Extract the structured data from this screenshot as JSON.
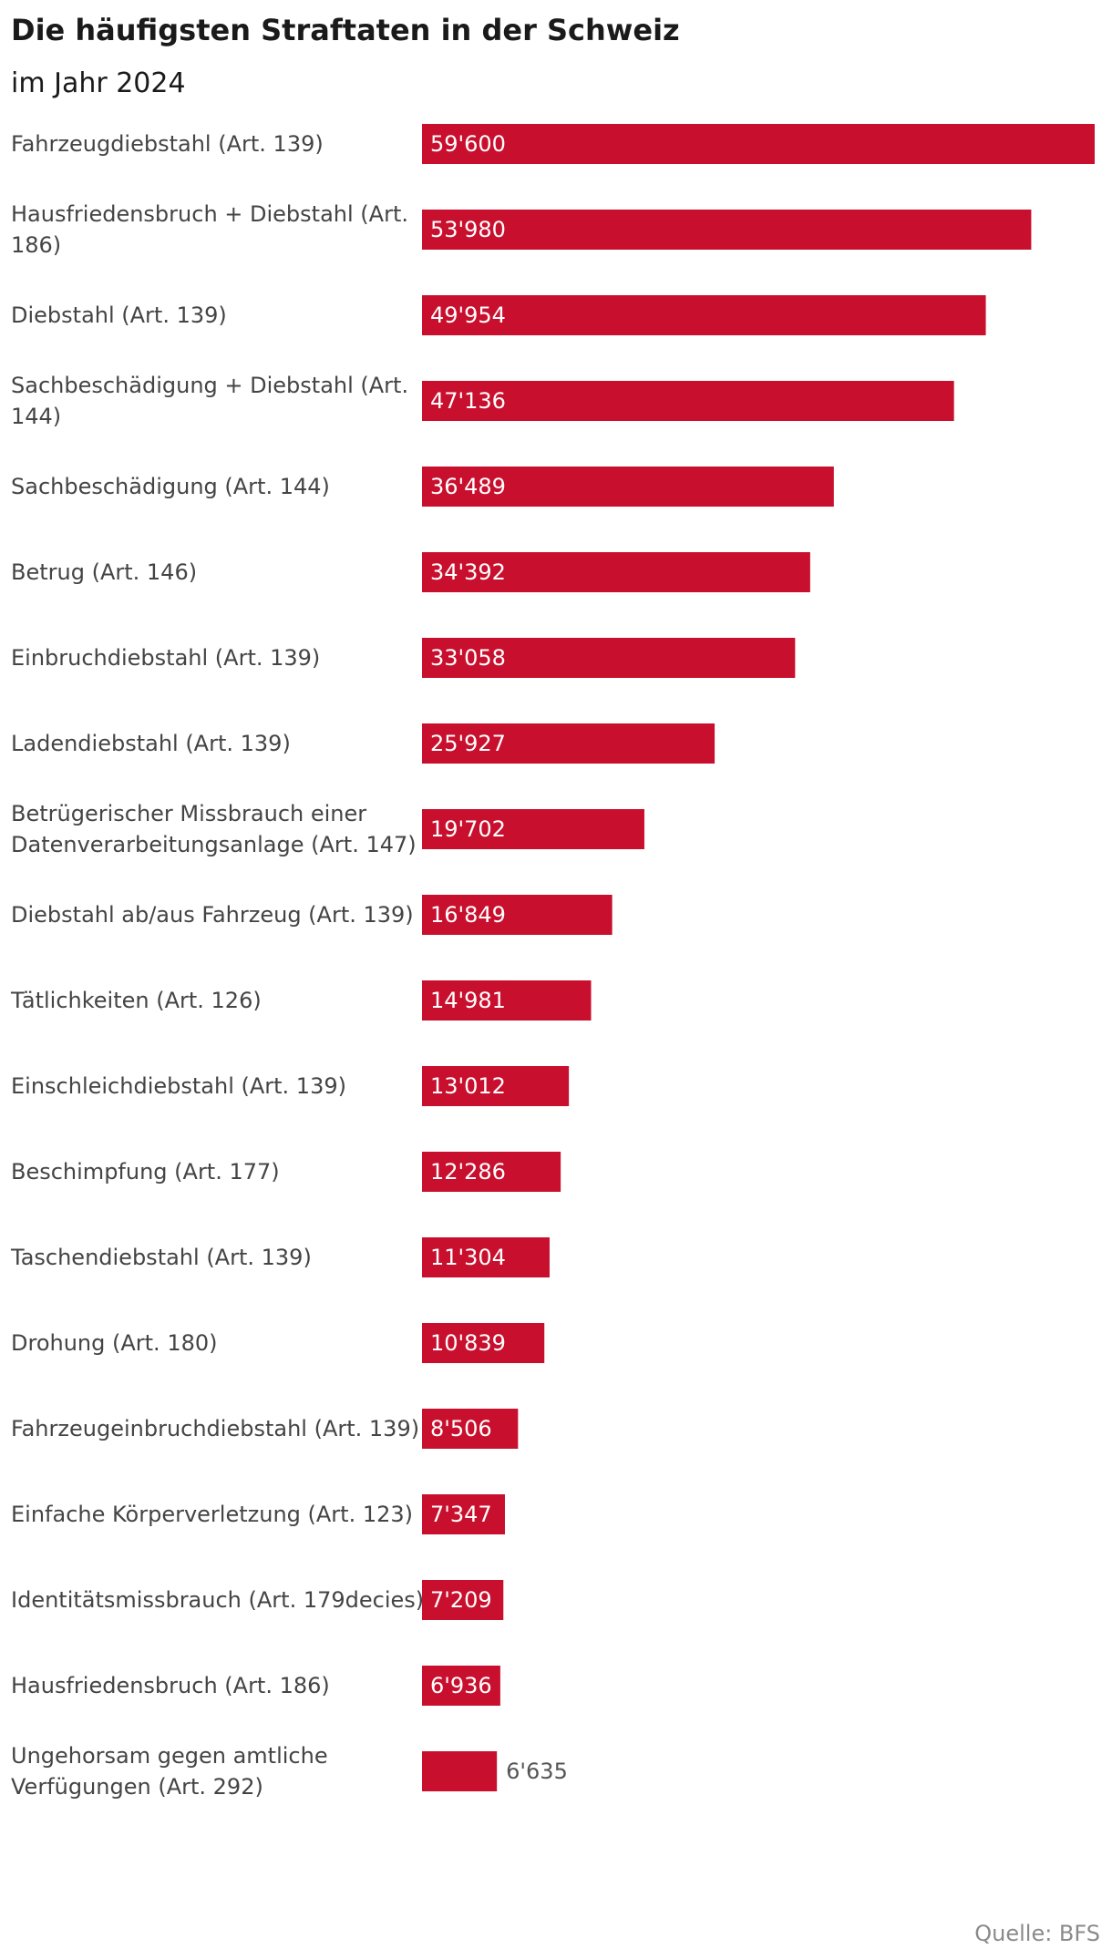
{
  "colors": {
    "bar": "#c8102e",
    "label_inside": "#ffffff",
    "label_outside": "#555555",
    "category_text": "#444444",
    "source_text": "#8a8a8a"
  },
  "chart_data": {
    "type": "bar",
    "orientation": "horizontal",
    "title": "Die häufigsten Straftaten in der Schweiz",
    "subtitle": "im Jahr 2024",
    "source": "Quelle: BFS",
    "grid": false,
    "categories": [
      [
        "Fahrzeugdiebstahl (Art. 139)"
      ],
      [
        "Hausfriedensbruch + Diebstahl (Art.",
        "186)"
      ],
      [
        "Diebstahl (Art. 139)"
      ],
      [
        "Sachbeschädigung + Diebstahl (Art.",
        "144)"
      ],
      [
        "Sachbeschädigung (Art. 144)"
      ],
      [
        "Betrug (Art. 146)"
      ],
      [
        "Einbruchdiebstahl (Art. 139)"
      ],
      [
        "Ladendiebstahl (Art. 139)"
      ],
      [
        "Betrügerischer Missbrauch einer",
        "Datenverarbeitungsanlage (Art. 147)"
      ],
      [
        "Diebstahl ab/aus Fahrzeug (Art. 139)"
      ],
      [
        "Tätlichkeiten (Art. 126)"
      ],
      [
        "Einschleichdiebstahl (Art. 139)"
      ],
      [
        "Beschimpfung (Art. 177)"
      ],
      [
        "Taschendiebstahl (Art. 139)"
      ],
      [
        "Drohung (Art. 180)"
      ],
      [
        "Fahrzeugeinbruchdiebstahl (Art. 139)"
      ],
      [
        "Einfache Körperverletzung (Art. 123)"
      ],
      [
        "Identitätsmissbrauch (Art. 179decies)"
      ],
      [
        "Hausfriedensbruch (Art. 186)"
      ],
      [
        "Ungehorsam gegen amtliche",
        "Verfügungen (Art. 292)"
      ]
    ],
    "values": [
      59600,
      53980,
      49954,
      47136,
      36489,
      34392,
      33058,
      25927,
      19702,
      16849,
      14981,
      13012,
      12286,
      11304,
      10839,
      8506,
      7347,
      7209,
      6936,
      6635
    ],
    "value_labels": [
      "59'600",
      "53'980",
      "49'954",
      "47'136",
      "36'489",
      "34'392",
      "33'058",
      "25'927",
      "19'702",
      "16'849",
      "14'981",
      "13'012",
      "12'286",
      "11'304",
      "10'839",
      "8'506",
      "7'347",
      "7'209",
      "6'936",
      "6'635"
    ],
    "label_outside": [
      false,
      false,
      false,
      false,
      false,
      false,
      false,
      false,
      false,
      false,
      false,
      false,
      false,
      false,
      false,
      false,
      false,
      false,
      false,
      true
    ],
    "xlim": [
      0,
      59600
    ]
  }
}
